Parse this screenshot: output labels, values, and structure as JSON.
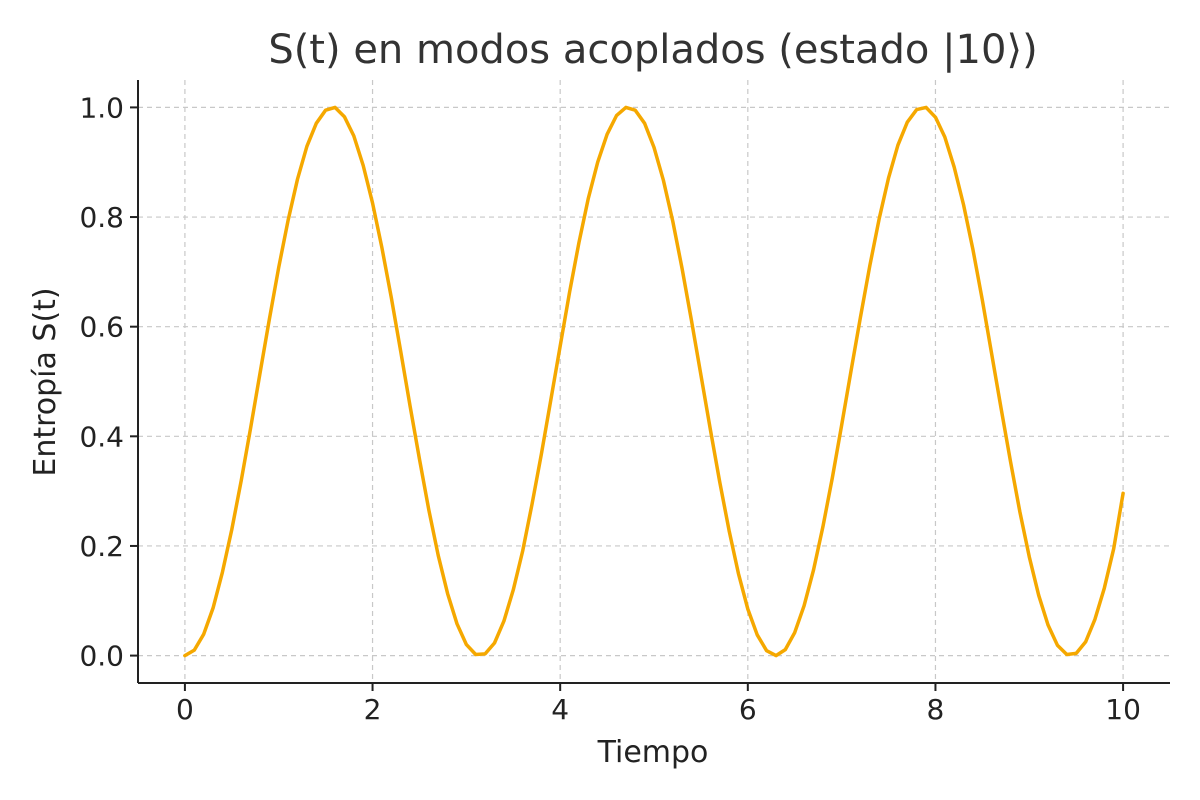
{
  "chart_data": {
    "type": "line",
    "title": "S(t) en modos acoplados (estado |10⟩)",
    "xlabel": "Tiempo",
    "ylabel": "Entropía S(t)",
    "xlim": [
      -0.5,
      10.5
    ],
    "ylim": [
      -0.05,
      1.05
    ],
    "xticks": [
      0,
      2,
      4,
      6,
      8,
      10
    ],
    "yticks": [
      0.0,
      0.2,
      0.4,
      0.6,
      0.8,
      1.0
    ],
    "xtick_labels": [
      "0",
      "2",
      "4",
      "6",
      "8",
      "10"
    ],
    "ytick_labels": [
      "0.0",
      "0.2",
      "0.4",
      "0.6",
      "0.8",
      "1.0"
    ],
    "grid": true,
    "series": [
      {
        "color": "#F5A800",
        "x": [
          0.0,
          0.1,
          0.2,
          0.3,
          0.4,
          0.5,
          0.6,
          0.7,
          0.8,
          0.9,
          1.0,
          1.1,
          1.2,
          1.3,
          1.4,
          1.5,
          1.6,
          1.7,
          1.8,
          1.9,
          2.0,
          2.1,
          2.2,
          2.3,
          2.4,
          2.5,
          2.6,
          2.7,
          2.8,
          2.9,
          3.0,
          3.1,
          3.2,
          3.3,
          3.4,
          3.5,
          3.6,
          3.7,
          3.8,
          3.9,
          4.0,
          4.1,
          4.2,
          4.3,
          4.4,
          4.5,
          4.6,
          4.7,
          4.8,
          4.9,
          5.0,
          5.1,
          5.2,
          5.3,
          5.4,
          5.5,
          5.6,
          5.7,
          5.8,
          5.9,
          6.0,
          6.1,
          6.2,
          6.3,
          6.4,
          6.5,
          6.6,
          6.7,
          6.8,
          6.9,
          7.0,
          7.1,
          7.2,
          7.3,
          7.4,
          7.5,
          7.6,
          7.7,
          7.8,
          7.9,
          8.0,
          8.1,
          8.2,
          8.3,
          8.4,
          8.5,
          8.6,
          8.7,
          8.8,
          8.9,
          9.0,
          9.1,
          9.2,
          9.3,
          9.4,
          9.5,
          9.6,
          9.7,
          9.8,
          9.9,
          10.0
        ],
        "y": [
          0.0,
          0.01,
          0.039,
          0.087,
          0.152,
          0.23,
          0.319,
          0.415,
          0.515,
          0.613,
          0.708,
          0.794,
          0.869,
          0.929,
          0.971,
          0.995,
          1.0,
          0.983,
          0.948,
          0.894,
          0.826,
          0.744,
          0.653,
          0.555,
          0.455,
          0.358,
          0.266,
          0.183,
          0.113,
          0.058,
          0.02,
          0.002,
          0.003,
          0.023,
          0.063,
          0.12,
          0.191,
          0.276,
          0.368,
          0.466,
          0.565,
          0.663,
          0.753,
          0.834,
          0.9,
          0.951,
          0.985,
          1.0,
          0.995,
          0.971,
          0.927,
          0.867,
          0.792,
          0.706,
          0.611,
          0.512,
          0.413,
          0.317,
          0.228,
          0.15,
          0.085,
          0.038,
          0.009,
          0.0,
          0.011,
          0.042,
          0.091,
          0.156,
          0.235,
          0.324,
          0.42,
          0.519,
          0.617,
          0.711,
          0.797,
          0.871,
          0.931,
          0.973,
          0.996,
          1.0,
          0.982,
          0.946,
          0.891,
          0.822,
          0.74,
          0.648,
          0.55,
          0.451,
          0.354,
          0.262,
          0.18,
          0.11,
          0.056,
          0.019,
          0.002,
          0.004,
          0.025,
          0.066,
          0.123,
          0.195,
          0.296
        ]
      }
    ]
  }
}
